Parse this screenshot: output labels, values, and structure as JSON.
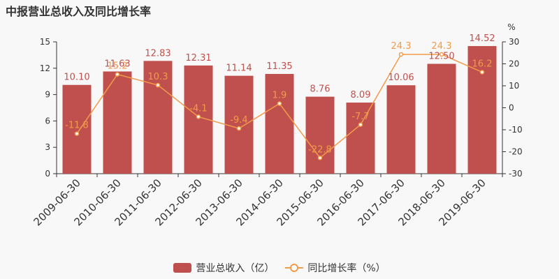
{
  "title": "中报营业总收入及同比增长率",
  "colors": {
    "bar": "#c0504d",
    "line": "#f19b4b",
    "axis": "#333333",
    "grid": "#e0e0e0",
    "bar_label": "#c0504d"
  },
  "chart_data": {
    "type": "bar",
    "title": "中报营业总收入及同比增长率",
    "categories": [
      "2009-06-30",
      "2010-06-30",
      "2011-06-30",
      "2012-06-30",
      "2013-06-30",
      "2014-06-30",
      "2015-06-30",
      "2016-06-30",
      "2017-06-30",
      "2018-06-30",
      "2019-06-30"
    ],
    "series": [
      {
        "name": "营业总收入（亿）",
        "type": "bar",
        "axis": "left",
        "values": [
          10.1,
          11.63,
          12.83,
          12.31,
          11.14,
          11.35,
          8.76,
          8.09,
          10.06,
          12.5,
          14.52
        ],
        "labels": [
          "10.10",
          "11.63",
          "12.83",
          "12.31",
          "11.14",
          "11.35",
          "8.76",
          "8.09",
          "10.06",
          "12.50",
          "14.52"
        ]
      },
      {
        "name": "同比增长率（%）",
        "type": "line",
        "axis": "right",
        "values": [
          -11.8,
          15.2,
          10.3,
          -4.1,
          -9.4,
          1.9,
          -22.8,
          -7.7,
          24.3,
          24.3,
          16.2
        ],
        "labels": [
          "-11.8",
          "15.2",
          "10.3",
          "-4.1",
          "-9.4",
          "1.9",
          "-22.8",
          "-7.7",
          "24.3",
          "24.3",
          "16.2"
        ]
      }
    ],
    "y_left": {
      "ylim": [
        0,
        15
      ],
      "ticks": [
        "0",
        "3",
        "6",
        "9",
        "12",
        "15"
      ]
    },
    "y_right": {
      "ylim": [
        -30,
        30
      ],
      "ticks": [
        "-30",
        "-20",
        "-10",
        "0",
        "10",
        "20",
        "30"
      ],
      "unit": "%"
    },
    "grid": false,
    "legend": "bottom-center"
  },
  "legend": {
    "bar_label": "营业总收入（亿）",
    "line_label": "同比增长率（%）"
  }
}
